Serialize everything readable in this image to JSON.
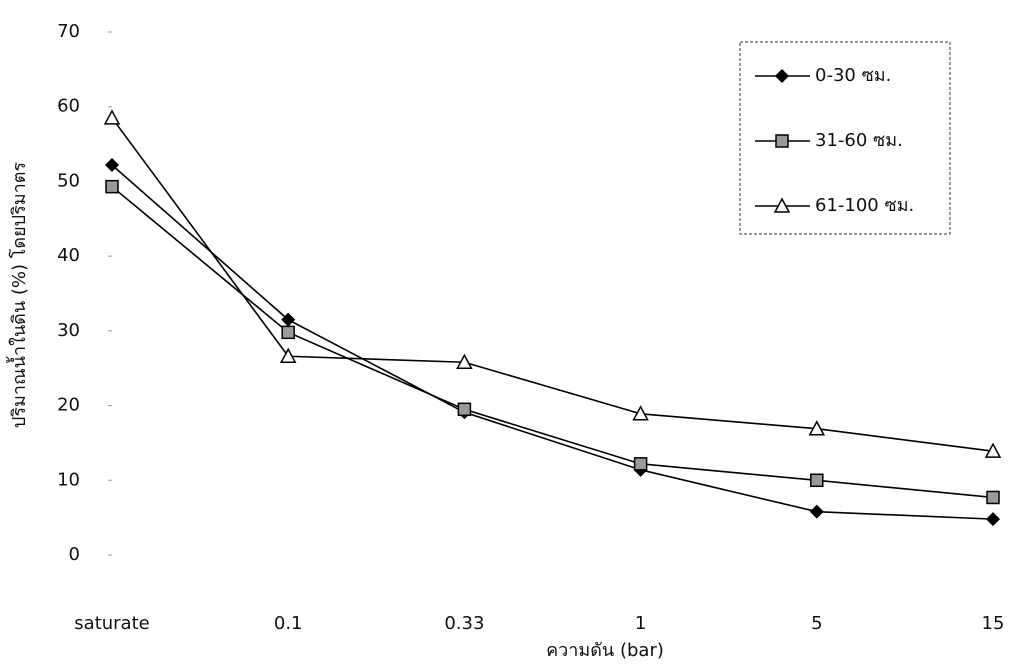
{
  "chart_data": {
    "type": "line",
    "x_label": "ความดัน (bar)",
    "y_label": "ปริมาณน้ำในดิน (%) โดยปริมาตร",
    "categories": [
      "saturate",
      "0.1",
      "0.33",
      "1",
      "5",
      "15"
    ],
    "series": [
      {
        "name": "0-30 ซม.",
        "color": "#000000",
        "marker": "diamond",
        "values": [
          52.2,
          31.5,
          19.1,
          11.4,
          5.8,
          4.8
        ]
      },
      {
        "name": "31-60 ซม.",
        "color": "#000000",
        "marker": "square",
        "values": [
          49.3,
          29.8,
          19.5,
          12.2,
          10.0,
          7.7
        ]
      },
      {
        "name": "61-100 ซม.",
        "color": "#000000",
        "marker": "triangle",
        "values": [
          58.5,
          26.6,
          25.8,
          18.9,
          16.9,
          13.9
        ]
      }
    ],
    "ylim": [
      0,
      70
    ],
    "yticks": [
      0,
      10,
      20,
      30,
      40,
      50,
      60,
      70
    ],
    "grid": false,
    "legend": "top-right"
  }
}
